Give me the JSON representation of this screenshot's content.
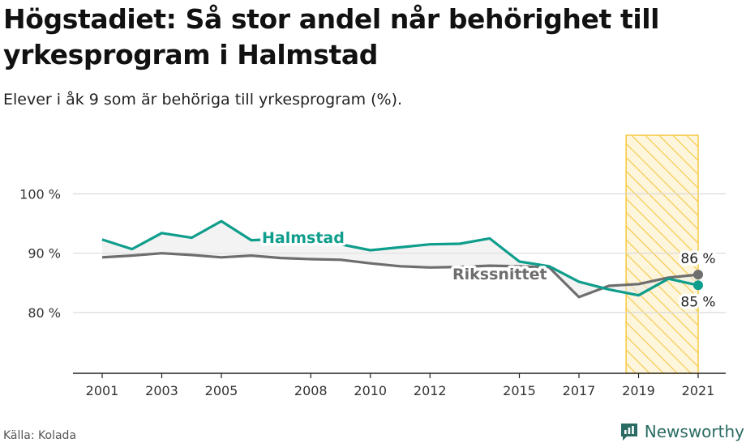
{
  "title": "Högstadiet: Så stor andel når behörighet till yrkesprogram i Halmstad",
  "subtitle": "Elever i åk 9 som är behöriga till yrkesprogram (%).",
  "source": "Källa: Kolada",
  "brand": {
    "name": "Newsworthy",
    "icon": "newsworthy-logo-icon"
  },
  "colors": {
    "halmstad": "#0f9d8c",
    "riket": "#6e6e6e",
    "highlight": "#f5c842",
    "grid": "#d9d9d9"
  },
  "chart_data": {
    "type": "line",
    "x": [
      2001,
      2002,
      2003,
      2004,
      2005,
      2006,
      2007,
      2008,
      2009,
      2010,
      2011,
      2012,
      2013,
      2014,
      2015,
      2016,
      2017,
      2018,
      2019,
      2020,
      2021
    ],
    "x_ticks": [
      2001,
      2003,
      2005,
      2008,
      2010,
      2012,
      2015,
      2017,
      2019,
      2021
    ],
    "x_tick_labels": [
      "2001",
      "2003",
      "2005",
      "2008",
      "2010",
      "2012",
      "2015",
      "2017",
      "2019",
      "2021"
    ],
    "y_ticks": [
      80,
      90,
      100
    ],
    "y_tick_labels": [
      "80 %",
      "90 %",
      "100 %"
    ],
    "ylim": [
      70,
      103
    ],
    "highlight_range": [
      2018.5,
      2021
    ],
    "grid": true,
    "series": [
      {
        "name": "Halmstad",
        "key": "halmstad",
        "values": [
          92.3,
          90.7,
          93.4,
          92.6,
          95.4,
          92.2,
          92.4,
          92.0,
          91.5,
          90.5,
          91.0,
          91.5,
          91.6,
          92.5,
          88.6,
          87.8,
          85.2,
          83.9,
          82.9,
          85.7,
          84.6
        ],
        "end_label": "85 %"
      },
      {
        "name": "Rikssnittet",
        "key": "riket",
        "values": [
          89.3,
          89.6,
          90.0,
          89.7,
          89.3,
          89.6,
          89.2,
          89.0,
          88.9,
          88.3,
          87.8,
          87.6,
          87.7,
          87.9,
          87.8,
          87.6,
          82.6,
          84.5,
          84.8,
          85.9,
          86.4
        ],
        "end_label": "86 %"
      }
    ]
  }
}
